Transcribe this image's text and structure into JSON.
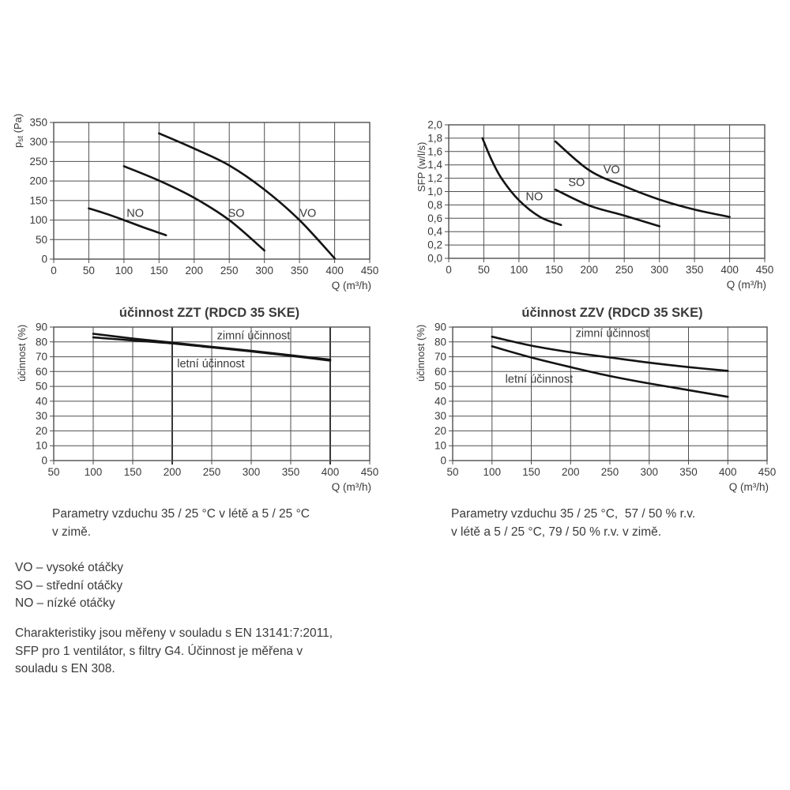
{
  "page": {
    "background": "#ffffff",
    "text_color": "#3a3a3a",
    "curve_color": "#141414",
    "grid_color": "#4f4f4f",
    "emphasis_color": "#222222"
  },
  "texts": {
    "note_left_line1": "Parametry vzduchu 35 / 25 °C v létě a 5 / 25 °C",
    "note_left_line2": "v zimě.",
    "note_right_line1": "Parametry vzduchu 35 / 25 °C,  57 / 50 % r.v.",
    "note_right_line2": "v létě a 5 / 25 °C, 79 / 50 % r.v. v zimě.",
    "legend_vo": "VO – vysoké otáčky",
    "legend_so": "SO – střední otáčky",
    "legend_no": "NO – nízké otáčky",
    "footer_line1": "Charakteristiky jsou měřeny v souladu s EN 13141:7:2011,",
    "footer_line2": "SFP pro 1 ventilátor, s filtry G4. Účinnost je měřena v",
    "footer_line3": "souladu s EN 308."
  },
  "chart_data": [
    {
      "id": "pst",
      "type": "line",
      "title": "",
      "xlabel": "Q (m³/h)",
      "ylabel_rich": [
        [
          "p",
          false
        ],
        [
          "st",
          true
        ],
        [
          " (Pa)",
          false
        ]
      ],
      "x_range": [
        0,
        450
      ],
      "y_range": [
        0,
        350
      ],
      "x_ticks": [
        0,
        50,
        100,
        150,
        200,
        250,
        300,
        350,
        400,
        450
      ],
      "y_ticks": [
        {
          "v": 0,
          "l": "0"
        },
        {
          "v": 50,
          "l": "50"
        },
        {
          "v": 100,
          "l": "100"
        },
        {
          "v": 150,
          "l": "150"
        },
        {
          "v": 200,
          "l": "200"
        },
        {
          "v": 250,
          "l": "250"
        },
        {
          "v": 300,
          "l": "300"
        },
        {
          "v": 350,
          "l": "350"
        }
      ],
      "grid": true,
      "series": [
        {
          "name": "NO",
          "label": "NO",
          "label_at": [
            116,
            118
          ],
          "points": [
            [
              50,
              130
            ],
            [
              75,
              116
            ],
            [
              100,
              100
            ],
            [
              130,
              80
            ],
            [
              160,
              61
            ]
          ]
        },
        {
          "name": "SO",
          "label": "SO",
          "label_at": [
            260,
            118
          ],
          "points": [
            [
              100,
              238
            ],
            [
              150,
              201
            ],
            [
              200,
              157
            ],
            [
              250,
              100
            ],
            [
              300,
              22
            ]
          ]
        },
        {
          "name": "VO",
          "label": "VO",
          "label_at": [
            362,
            118
          ],
          "points": [
            [
              150,
              322
            ],
            [
              200,
              283
            ],
            [
              250,
              240
            ],
            [
              300,
              178
            ],
            [
              350,
              100
            ],
            [
              400,
              2
            ]
          ]
        }
      ]
    },
    {
      "id": "sfp",
      "type": "line",
      "title": "",
      "xlabel": "Q (m³/h)",
      "ylabel_rich": [
        [
          "SFP (w/l/s)",
          false
        ]
      ],
      "x_range": [
        0,
        450
      ],
      "y_range": [
        0,
        2.0
      ],
      "x_ticks": [
        0,
        50,
        100,
        150,
        200,
        250,
        300,
        350,
        400,
        450
      ],
      "y_ticks": [
        {
          "v": 0.0,
          "l": "0,0"
        },
        {
          "v": 0.2,
          "l": "0,2"
        },
        {
          "v": 0.4,
          "l": "0,4"
        },
        {
          "v": 0.6,
          "l": "0,6"
        },
        {
          "v": 0.8,
          "l": "0,8"
        },
        {
          "v": 1.0,
          "l": "1,0"
        },
        {
          "v": 1.2,
          "l": "1,2"
        },
        {
          "v": 1.4,
          "l": "1,4"
        },
        {
          "v": 1.6,
          "l": "1,6"
        },
        {
          "v": 1.8,
          "l": "1,8"
        },
        {
          "v": 2.0,
          "l": "2,0"
        }
      ],
      "grid": true,
      "series": [
        {
          "name": "NO",
          "label": "NO",
          "label_at": [
            122,
            0.93
          ],
          "points": [
            [
              48,
              1.8
            ],
            [
              60,
              1.5
            ],
            [
              75,
              1.2
            ],
            [
              100,
              0.87
            ],
            [
              130,
              0.62
            ],
            [
              160,
              0.5
            ]
          ]
        },
        {
          "name": "SO",
          "label": "SO",
          "label_at": [
            182,
            1.14
          ],
          "points": [
            [
              152,
              1.03
            ],
            [
              200,
              0.79
            ],
            [
              250,
              0.64
            ],
            [
              300,
              0.48
            ]
          ]
        },
        {
          "name": "VO",
          "label": "VO",
          "label_at": [
            232,
            1.33
          ],
          "points": [
            [
              152,
              1.75
            ],
            [
              200,
              1.32
            ],
            [
              250,
              1.08
            ],
            [
              300,
              0.88
            ],
            [
              350,
              0.73
            ],
            [
              400,
              0.62
            ]
          ]
        }
      ]
    },
    {
      "id": "zzt",
      "type": "line",
      "title": "účinnost ZZT (RDCD 35 SKE)",
      "xlabel": "Q (m³/h)",
      "ylabel_rich": [
        [
          "účinnost (%)",
          false
        ]
      ],
      "x_range": [
        50,
        450
      ],
      "y_range": [
        0,
        90
      ],
      "x_ticks": [
        50,
        100,
        150,
        200,
        250,
        300,
        350,
        400,
        450
      ],
      "y_ticks": [
        {
          "v": 0,
          "l": "0"
        },
        {
          "v": 10,
          "l": "10"
        },
        {
          "v": 20,
          "l": "20"
        },
        {
          "v": 30,
          "l": "30"
        },
        {
          "v": 40,
          "l": "40"
        },
        {
          "v": 50,
          "l": "50"
        },
        {
          "v": 60,
          "l": "60"
        },
        {
          "v": 70,
          "l": "70"
        },
        {
          "v": 80,
          "l": "80"
        },
        {
          "v": 90,
          "l": "90"
        }
      ],
      "grid": true,
      "emphasized_x": [
        200,
        400
      ],
      "series": [
        {
          "name": "zimni",
          "label": "zimní účinnost",
          "label_at": [
            303,
            84.5
          ],
          "points": [
            [
              100,
              85.5
            ],
            [
              150,
              82.3
            ],
            [
              200,
              79.5
            ],
            [
              250,
              76.7
            ],
            [
              300,
              74
            ],
            [
              350,
              71
            ],
            [
              400,
              68
            ]
          ]
        },
        {
          "name": "letni",
          "label": "letní účinnost",
          "label_at": [
            249,
            65.5
          ],
          "points": [
            [
              100,
              83
            ],
            [
              150,
              81
            ],
            [
              200,
              79
            ],
            [
              250,
              76.3
            ],
            [
              300,
              73.6
            ],
            [
              350,
              70.6
            ],
            [
              400,
              67.4
            ]
          ]
        }
      ]
    },
    {
      "id": "zzv",
      "type": "line",
      "title": "účinnost ZZV (RDCD 35 SKE)",
      "xlabel": "Q (m³/h)",
      "ylabel_rich": [
        [
          "účinnost (%)",
          false
        ]
      ],
      "x_range": [
        50,
        450
      ],
      "y_range": [
        0,
        90
      ],
      "x_ticks": [
        50,
        100,
        150,
        200,
        250,
        300,
        350,
        400,
        450
      ],
      "y_ticks": [
        {
          "v": 0,
          "l": "0"
        },
        {
          "v": 10,
          "l": "10"
        },
        {
          "v": 20,
          "l": "20"
        },
        {
          "v": 30,
          "l": "30"
        },
        {
          "v": 40,
          "l": "40"
        },
        {
          "v": 50,
          "l": "50"
        },
        {
          "v": 60,
          "l": "60"
        },
        {
          "v": 70,
          "l": "70"
        },
        {
          "v": 80,
          "l": "80"
        },
        {
          "v": 90,
          "l": "90"
        }
      ],
      "grid": true,
      "series": [
        {
          "name": "zimni",
          "label": "zimní účinnost",
          "label_at": [
            253,
            86
          ],
          "points": [
            [
              100,
              83.5
            ],
            [
              150,
              77.5
            ],
            [
              200,
              73
            ],
            [
              250,
              69.5
            ],
            [
              300,
              66
            ],
            [
              350,
              63
            ],
            [
              400,
              60.5
            ]
          ]
        },
        {
          "name": "letni",
          "label": "letní účinnost",
          "label_at": [
            160,
            55
          ],
          "points": [
            [
              100,
              77
            ],
            [
              150,
              69.5
            ],
            [
              200,
              63
            ],
            [
              250,
              57
            ],
            [
              300,
              52
            ],
            [
              350,
              47.5
            ],
            [
              400,
              43
            ]
          ]
        }
      ]
    }
  ]
}
